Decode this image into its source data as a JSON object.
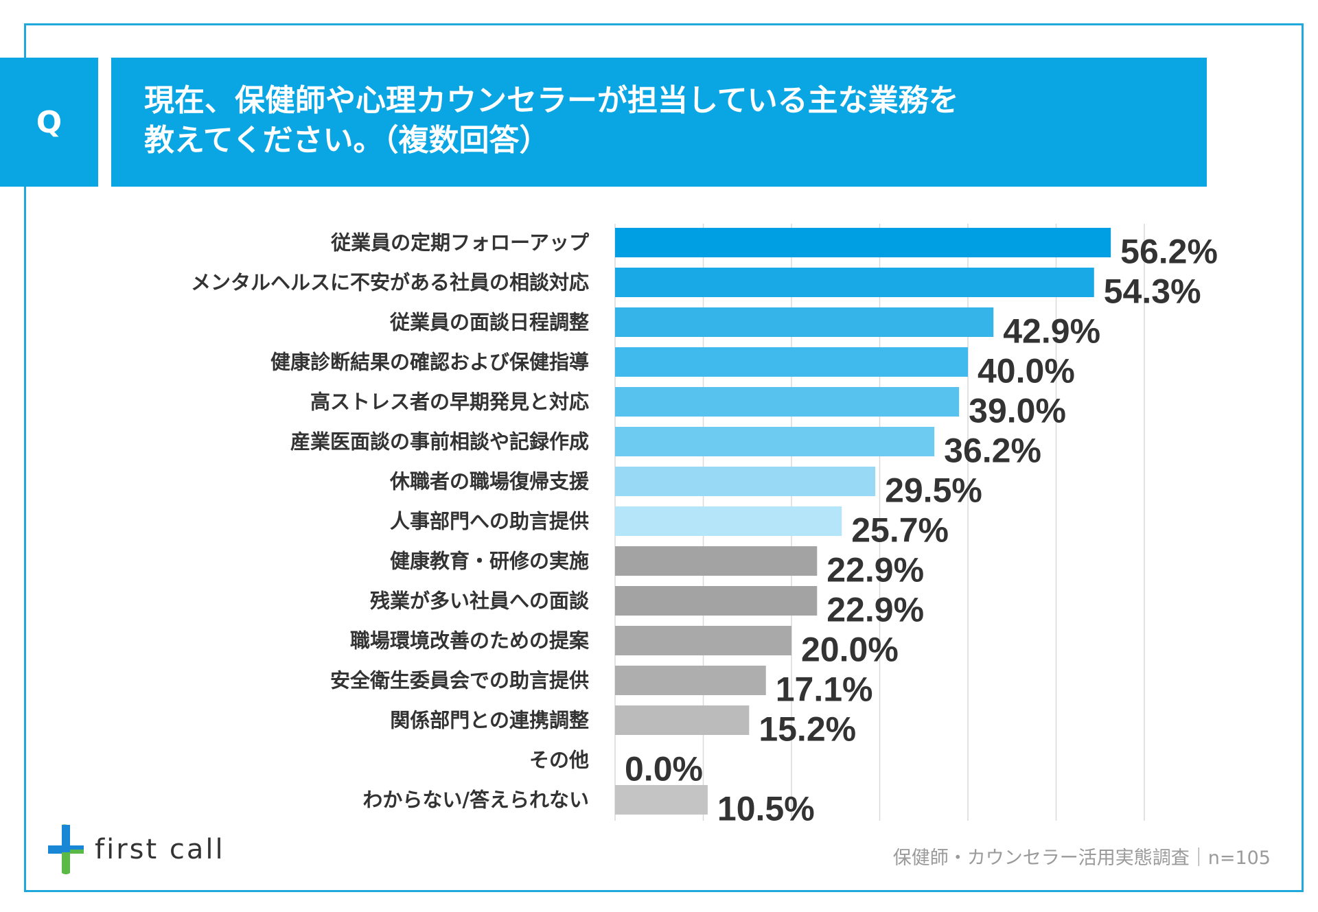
{
  "header": {
    "badge": "Q",
    "question_line1": "現在、保健師や心理カウンセラーが担当している主な業務を",
    "question_line2": "教えてください。（複数回答）"
  },
  "chart_data": {
    "type": "bar",
    "orientation": "horizontal",
    "title": "",
    "xlabel": "",
    "ylabel": "",
    "xlim": [
      0,
      60
    ],
    "grid": true,
    "categories": [
      "従業員の定期フォローアップ",
      "メンタルヘルスに不安がある社員の相談対応",
      "従業員の面談日程調整",
      "健康診断結果の確認および保健指導",
      "高ストレス者の早期発見と対応",
      "産業医面談の事前相談や記録作成",
      "休職者の職場復帰支援",
      "人事部門への助言提供",
      "健康教育・研修の実施",
      "残業が多い社員への面談",
      "職場環境改善のための提案",
      "安全衛生委員会での助言提供",
      "関係部門との連携調整",
      "その他",
      "わからない/答えられない"
    ],
    "values": [
      56.2,
      54.3,
      42.9,
      40.0,
      39.0,
      36.2,
      29.5,
      25.7,
      22.9,
      22.9,
      20.0,
      17.1,
      15.2,
      0.0,
      10.5
    ],
    "value_labels": [
      "56.2%",
      "54.3%",
      "42.9%",
      "40.0%",
      "39.0%",
      "36.2%",
      "29.5%",
      "25.7%",
      "22.9%",
      "22.9%",
      "20.0%",
      "17.1%",
      "15.2%",
      "0.0%",
      "10.5%"
    ],
    "colors": [
      "#009fe3",
      "#18a9e6",
      "#35b4ea",
      "#40b9ec",
      "#58c2ef",
      "#6dcbf1",
      "#98daf5",
      "#b5e5f8",
      "#a3a3a3",
      "#a3a3a3",
      "#a9a9a9",
      "#aeaeae",
      "#bbbbbb",
      "#bbbbbb",
      "#c4c4c4"
    ],
    "grid_color": "#d9d9d9"
  },
  "logo": {
    "text": "first call",
    "colors": {
      "blue": "#1a86d6",
      "green": "#5ab947"
    }
  },
  "footnote": "保健師・カウンセラー活用実態調査｜n=105"
}
